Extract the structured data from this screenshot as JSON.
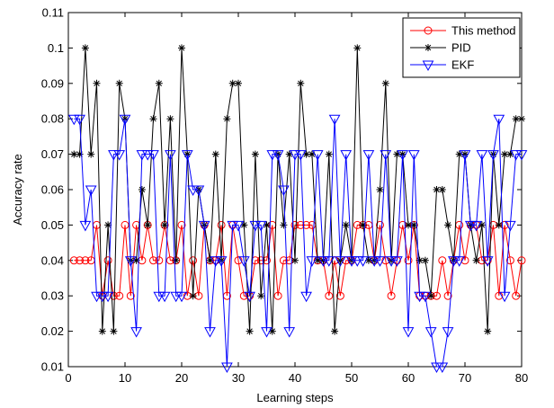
{
  "chart_data": {
    "type": "line",
    "xlabel": "Learning steps",
    "ylabel": "Accuracy rate",
    "xlim": [
      0,
      80
    ],
    "ylim": [
      0.01,
      0.11
    ],
    "grid": false,
    "legend_position": "top-right",
    "x_ticks": [
      0,
      10,
      20,
      30,
      40,
      50,
      60,
      70,
      80
    ],
    "y_ticks": [
      0.01,
      0.02,
      0.03,
      0.04,
      0.05,
      0.06,
      0.07,
      0.08,
      0.09,
      0.1,
      0.11
    ],
    "x_tick_labels": [
      "0",
      "10",
      "20",
      "30",
      "40",
      "50",
      "60",
      "70",
      "80"
    ],
    "y_tick_labels": [
      "0.01",
      "0.02",
      "0.03",
      "0.04",
      "0.05",
      "0.06",
      "0.07",
      "0.08",
      "0.09",
      "0.1",
      "0.11"
    ],
    "series": [
      {
        "name": "This method",
        "color": "#ff0000",
        "marker": "circle",
        "x": [
          1,
          2,
          3,
          4,
          5,
          6,
          7,
          8,
          9,
          10,
          11,
          12,
          13,
          14,
          15,
          16,
          17,
          18,
          19,
          20,
          21,
          22,
          23,
          24,
          25,
          26,
          27,
          28,
          29,
          30,
          31,
          32,
          33,
          34,
          35,
          36,
          37,
          38,
          39,
          40,
          41,
          42,
          43,
          44,
          45,
          46,
          47,
          48,
          49,
          50,
          51,
          52,
          53,
          54,
          55,
          56,
          57,
          58,
          59,
          60,
          61,
          62,
          63,
          64,
          65,
          66,
          67,
          68,
          69,
          70,
          71,
          72,
          73,
          74,
          75,
          76,
          77,
          78,
          79,
          80
        ],
        "y": [
          0.04,
          0.04,
          0.04,
          0.04,
          0.05,
          0.03,
          0.04,
          0.03,
          0.03,
          0.05,
          0.03,
          0.05,
          0.04,
          0.05,
          0.04,
          0.04,
          0.05,
          0.04,
          0.04,
          0.05,
          0.03,
          0.04,
          0.03,
          0.05,
          0.04,
          0.04,
          0.05,
          0.03,
          0.05,
          0.04,
          0.03,
          0.03,
          0.04,
          0.04,
          0.04,
          0.05,
          0.03,
          0.04,
          0.04,
          0.05,
          0.05,
          0.05,
          0.05,
          0.04,
          0.04,
          0.03,
          0.04,
          0.03,
          0.04,
          0.04,
          0.05,
          0.05,
          0.05,
          0.04,
          0.05,
          0.04,
          0.03,
          0.04,
          0.05,
          0.04,
          0.05,
          0.03,
          0.03,
          0.03,
          0.03,
          0.04,
          0.03,
          0.04,
          0.05,
          0.04,
          0.05,
          0.05,
          0.04,
          0.04,
          0.05,
          0.03,
          0.05,
          0.04,
          0.03,
          0.04
        ]
      },
      {
        "name": "PID",
        "color": "#000000",
        "marker": "asterisk",
        "x": [
          1,
          2,
          3,
          4,
          5,
          6,
          7,
          8,
          9,
          10,
          11,
          12,
          13,
          14,
          15,
          16,
          17,
          18,
          19,
          20,
          21,
          22,
          23,
          24,
          25,
          26,
          27,
          28,
          29,
          30,
          31,
          32,
          33,
          34,
          35,
          36,
          37,
          38,
          39,
          40,
          41,
          42,
          43,
          44,
          45,
          46,
          47,
          48,
          49,
          50,
          51,
          52,
          53,
          54,
          55,
          56,
          57,
          58,
          59,
          60,
          61,
          62,
          63,
          64,
          65,
          66,
          67,
          68,
          69,
          70,
          71,
          72,
          73,
          74,
          75,
          76,
          77,
          78,
          79,
          80
        ],
        "y": [
          0.07,
          0.07,
          0.1,
          0.07,
          0.09,
          0.02,
          0.05,
          0.02,
          0.09,
          0.08,
          0.04,
          0.04,
          0.06,
          0.05,
          0.08,
          0.09,
          0.05,
          0.08,
          0.04,
          0.1,
          0.07,
          0.03,
          0.06,
          0.05,
          0.04,
          0.07,
          0.04,
          0.08,
          0.09,
          0.09,
          0.05,
          0.02,
          0.07,
          0.03,
          0.05,
          0.02,
          0.07,
          0.05,
          0.07,
          0.04,
          0.09,
          0.07,
          0.07,
          0.04,
          0.04,
          0.07,
          0.02,
          0.04,
          0.05,
          0.04,
          0.1,
          0.05,
          0.04,
          0.04,
          0.06,
          0.09,
          0.04,
          0.07,
          0.07,
          0.05,
          0.05,
          0.04,
          0.04,
          0.03,
          0.06,
          0.06,
          0.05,
          0.04,
          0.07,
          0.07,
          0.05,
          0.04,
          0.05,
          0.02,
          0.07,
          0.05,
          0.07,
          0.07,
          0.08,
          0.08
        ]
      },
      {
        "name": "EKF",
        "color": "#0000ff",
        "marker": "triangle-down",
        "x": [
          1,
          2,
          3,
          4,
          5,
          6,
          7,
          8,
          9,
          10,
          11,
          12,
          13,
          14,
          15,
          16,
          17,
          18,
          19,
          20,
          21,
          22,
          23,
          24,
          25,
          26,
          27,
          28,
          29,
          30,
          31,
          32,
          33,
          34,
          35,
          36,
          37,
          38,
          39,
          40,
          41,
          42,
          43,
          44,
          45,
          46,
          47,
          48,
          49,
          50,
          51,
          52,
          53,
          54,
          55,
          56,
          57,
          58,
          59,
          60,
          61,
          62,
          63,
          64,
          65,
          66,
          67,
          68,
          69,
          70,
          71,
          72,
          73,
          74,
          75,
          76,
          77,
          78,
          79,
          80
        ],
        "y": [
          0.08,
          0.08,
          0.05,
          0.06,
          0.03,
          0.03,
          0.03,
          0.07,
          0.07,
          0.08,
          0.04,
          0.02,
          0.07,
          0.07,
          0.07,
          0.03,
          0.03,
          0.07,
          0.03,
          0.03,
          0.07,
          0.06,
          0.06,
          0.05,
          0.02,
          0.04,
          0.04,
          0.01,
          0.05,
          0.05,
          0.04,
          0.03,
          0.05,
          0.05,
          0.02,
          0.07,
          0.07,
          0.06,
          0.02,
          0.07,
          0.07,
          0.03,
          0.04,
          0.07,
          0.04,
          0.04,
          0.08,
          0.04,
          0.07,
          0.04,
          0.04,
          0.04,
          0.07,
          0.04,
          0.04,
          0.07,
          0.04,
          0.04,
          0.07,
          0.02,
          0.07,
          0.03,
          0.03,
          0.02,
          0.01,
          0.01,
          0.02,
          0.04,
          0.04,
          0.07,
          0.05,
          0.05,
          0.07,
          0.04,
          0.07,
          0.08,
          0.03,
          0.05,
          0.07,
          0.07
        ]
      }
    ]
  }
}
